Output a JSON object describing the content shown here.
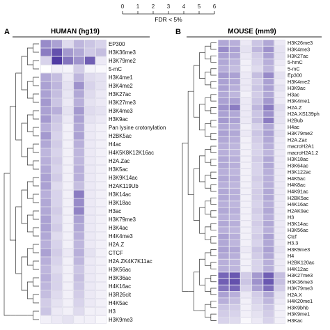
{
  "legend": {
    "title": "FDR < 5%",
    "ticks": [
      "0",
      "1",
      "2",
      "3",
      "4",
      "5",
      "6"
    ],
    "color_low": "#ffffff",
    "color_high": "#3d2599"
  },
  "chart_data": [
    {
      "type": "heatmap",
      "panel_letter": "A",
      "title": "HUMAN (hg19)",
      "rows": [
        "EP300",
        "H3K36me3",
        "H3K79me2",
        "5-mC",
        "H3K4me1",
        "H3K4me2",
        "H3K27ac",
        "H3K27me3",
        "H3K4me3",
        "H3K9ac",
        "Pan lysine crotonylation",
        "H2BK5ac",
        "H4ac",
        "H4K5K8K12K16ac",
        "H2A.Zac",
        "H3K5ac",
        "H3K9K14ac",
        "H2AK119Ub",
        "H3K14ac",
        "H3K18ac",
        "H3ac",
        "H3K79me3",
        "H3K4ac",
        "H4K4me3",
        "H2A.Z",
        "CTCF",
        "H2A.ZK4K7K11ac",
        "H3K56ac",
        "H3K36ac",
        "H4K16ac",
        "H3R26cit",
        "H4K5ac",
        "H3",
        "H3K9me3"
      ],
      "values": [
        [
          3.2,
          2.6,
          1.0,
          2.0,
          1.6,
          1.2
        ],
        [
          3.6,
          4.8,
          2.8,
          2.4,
          1.5,
          1.8
        ],
        [
          1.2,
          5.4,
          3.8,
          3.0,
          4.4,
          0.6
        ],
        [
          0.0,
          0.4,
          0.3,
          1.4,
          0.3,
          0.2
        ],
        [
          2.4,
          1.8,
          0.6,
          2.0,
          1.0,
          0.8
        ],
        [
          2.6,
          2.0,
          0.8,
          3.0,
          1.2,
          0.8
        ],
        [
          2.6,
          1.8,
          0.7,
          2.4,
          1.0,
          0.6
        ],
        [
          2.8,
          1.6,
          0.6,
          2.2,
          0.8,
          0.6
        ],
        [
          2.6,
          2.2,
          0.8,
          2.8,
          1.0,
          0.8
        ],
        [
          2.8,
          1.6,
          0.6,
          2.6,
          0.8,
          0.6
        ],
        [
          2.2,
          1.4,
          0.4,
          2.4,
          0.6,
          0.4
        ],
        [
          2.8,
          1.2,
          0.4,
          2.6,
          0.6,
          0.4
        ],
        [
          2.4,
          1.4,
          0.4,
          2.2,
          0.6,
          0.4
        ],
        [
          2.0,
          1.2,
          0.4,
          2.0,
          0.6,
          0.4
        ],
        [
          2.2,
          1.4,
          0.4,
          2.0,
          0.6,
          0.4
        ],
        [
          2.4,
          1.2,
          0.4,
          2.2,
          0.6,
          0.4
        ],
        [
          2.6,
          1.4,
          0.4,
          2.2,
          0.6,
          0.4
        ],
        [
          2.6,
          1.0,
          0.4,
          1.8,
          0.6,
          0.4
        ],
        [
          2.2,
          1.2,
          0.4,
          3.6,
          0.6,
          0.4
        ],
        [
          2.4,
          1.2,
          0.4,
          3.2,
          0.6,
          0.4
        ],
        [
          2.4,
          1.4,
          0.4,
          3.4,
          0.6,
          0.4
        ],
        [
          2.6,
          1.2,
          0.4,
          2.6,
          0.6,
          0.4
        ],
        [
          2.6,
          1.4,
          0.4,
          2.4,
          0.6,
          0.4
        ],
        [
          2.4,
          1.0,
          0.4,
          2.2,
          0.6,
          0.4
        ],
        [
          2.2,
          1.2,
          0.4,
          2.0,
          0.6,
          0.4
        ],
        [
          2.6,
          1.4,
          0.6,
          2.2,
          0.8,
          0.4
        ],
        [
          2.2,
          1.2,
          0.4,
          2.0,
          0.6,
          0.4
        ],
        [
          2.0,
          1.0,
          0.4,
          1.6,
          0.6,
          0.4
        ],
        [
          2.2,
          1.2,
          0.4,
          1.8,
          0.6,
          0.4
        ],
        [
          2.0,
          1.2,
          0.4,
          1.6,
          0.6,
          0.4
        ],
        [
          1.8,
          1.0,
          0.4,
          1.4,
          0.6,
          0.4
        ],
        [
          1.4,
          0.8,
          0.4,
          1.2,
          0.6,
          0.4
        ],
        [
          1.6,
          0.6,
          0.4,
          1.0,
          0.4,
          0.4
        ],
        [
          0.4,
          0.6,
          0.8,
          0.4,
          0.4,
          0.2
        ]
      ],
      "value_range": [
        0,
        6
      ]
    },
    {
      "type": "heatmap",
      "panel_letter": "B",
      "title": "MOUSE (mm9)",
      "rows": [
        "H3K26me3",
        "H3K4me3",
        "H3K27ac",
        "5-hmC",
        "5-mC",
        "Ep300",
        "H3K4me2",
        "H3K9ac",
        "H3ac",
        "H3K4me1",
        "H2A.Z",
        "H2A.XS139ph",
        "H2Bub",
        "H4ac",
        "H3K79me2",
        "H2A.Zac",
        "macroH2A1",
        "macroH2A1.2",
        "H3K18ac",
        "H3K64ac",
        "H3K122ac",
        "H4K5ac",
        "H4K8ac",
        "H4K91ac",
        "H2BK5ac",
        "H4K16ac",
        "H2AK9ac",
        "H3",
        "H3K14ac",
        "H3K56ac",
        "Ctcf",
        "H3.3",
        "H3K9me3",
        "H4",
        "H2BK120ac",
        "H4K12ac",
        "H3K27me3",
        "H3K36me3",
        "H3K79me3",
        "H2A.X",
        "H4K20me1",
        "H3K9bhb",
        "H3K9me1",
        "H3Kac"
      ],
      "values": [
        [
          2.4,
          2.2,
          0.6,
          1.6,
          2.4,
          0.6
        ],
        [
          3.2,
          2.6,
          0.8,
          2.0,
          3.0,
          0.8
        ],
        [
          2.6,
          2.4,
          0.6,
          1.4,
          2.6,
          0.8
        ],
        [
          2.4,
          2.0,
          0.4,
          1.2,
          2.2,
          0.6
        ],
        [
          2.2,
          1.8,
          0.4,
          1.0,
          2.0,
          0.4
        ],
        [
          2.8,
          2.6,
          0.6,
          1.8,
          3.2,
          0.8
        ],
        [
          2.6,
          2.4,
          0.6,
          1.4,
          2.6,
          0.6
        ],
        [
          2.6,
          2.2,
          0.6,
          1.6,
          2.6,
          0.8
        ],
        [
          2.4,
          2.0,
          0.4,
          1.4,
          2.4,
          0.6
        ],
        [
          2.6,
          2.6,
          0.6,
          1.6,
          2.8,
          0.6
        ],
        [
          3.0,
          3.6,
          0.6,
          2.0,
          3.6,
          1.0
        ],
        [
          2.6,
          2.4,
          0.6,
          1.6,
          3.0,
          0.8
        ],
        [
          2.8,
          2.6,
          0.6,
          1.8,
          3.6,
          0.8
        ],
        [
          2.4,
          2.2,
          0.4,
          1.2,
          2.4,
          0.6
        ],
        [
          2.6,
          2.4,
          0.6,
          1.6,
          2.6,
          0.8
        ],
        [
          2.4,
          2.2,
          0.4,
          1.4,
          2.4,
          0.6
        ],
        [
          2.2,
          2.0,
          0.4,
          1.2,
          2.2,
          0.6
        ],
        [
          2.2,
          2.0,
          0.4,
          1.2,
          2.0,
          0.6
        ],
        [
          2.4,
          2.2,
          0.4,
          1.4,
          2.4,
          0.6
        ],
        [
          2.4,
          2.2,
          0.4,
          1.2,
          2.4,
          0.6
        ],
        [
          2.2,
          2.0,
          0.4,
          1.2,
          2.2,
          0.6
        ],
        [
          2.4,
          2.2,
          0.4,
          1.4,
          2.2,
          0.6
        ],
        [
          2.2,
          2.0,
          0.4,
          1.2,
          2.2,
          0.6
        ],
        [
          2.4,
          2.2,
          0.4,
          1.4,
          2.4,
          0.6
        ],
        [
          2.4,
          2.2,
          0.4,
          1.4,
          2.4,
          0.6
        ],
        [
          2.2,
          2.0,
          0.4,
          1.2,
          2.2,
          0.6
        ],
        [
          2.4,
          2.2,
          0.4,
          1.4,
          2.4,
          0.6
        ],
        [
          2.2,
          2.0,
          0.4,
          1.2,
          2.2,
          0.6
        ],
        [
          2.4,
          2.2,
          0.4,
          1.4,
          2.4,
          0.6
        ],
        [
          2.2,
          2.0,
          0.4,
          1.2,
          2.2,
          0.6
        ],
        [
          2.6,
          2.2,
          0.4,
          1.4,
          2.6,
          0.6
        ],
        [
          2.4,
          2.0,
          0.4,
          1.2,
          2.4,
          0.6
        ],
        [
          2.6,
          2.4,
          0.6,
          1.6,
          2.6,
          0.8
        ],
        [
          2.4,
          2.2,
          0.4,
          1.4,
          2.4,
          0.6
        ],
        [
          2.2,
          2.0,
          0.4,
          1.2,
          2.2,
          0.6
        ],
        [
          2.2,
          2.0,
          0.4,
          1.2,
          2.2,
          0.6
        ],
        [
          4.2,
          4.6,
          1.4,
          2.8,
          4.4,
          1.8
        ],
        [
          4.4,
          4.8,
          1.6,
          3.0,
          4.6,
          1.8
        ],
        [
          3.8,
          4.2,
          1.2,
          2.6,
          4.0,
          1.4
        ],
        [
          2.6,
          2.2,
          0.6,
          1.4,
          2.4,
          0.8
        ],
        [
          2.2,
          1.8,
          0.4,
          1.2,
          2.0,
          0.6
        ],
        [
          1.6,
          1.4,
          0.4,
          1.0,
          1.6,
          0.4
        ],
        [
          1.4,
          1.2,
          0.4,
          0.8,
          1.4,
          0.4
        ],
        [
          1.2,
          1.0,
          0.2,
          0.6,
          1.2,
          0.4
        ]
      ],
      "value_range": [
        0,
        6
      ]
    }
  ]
}
